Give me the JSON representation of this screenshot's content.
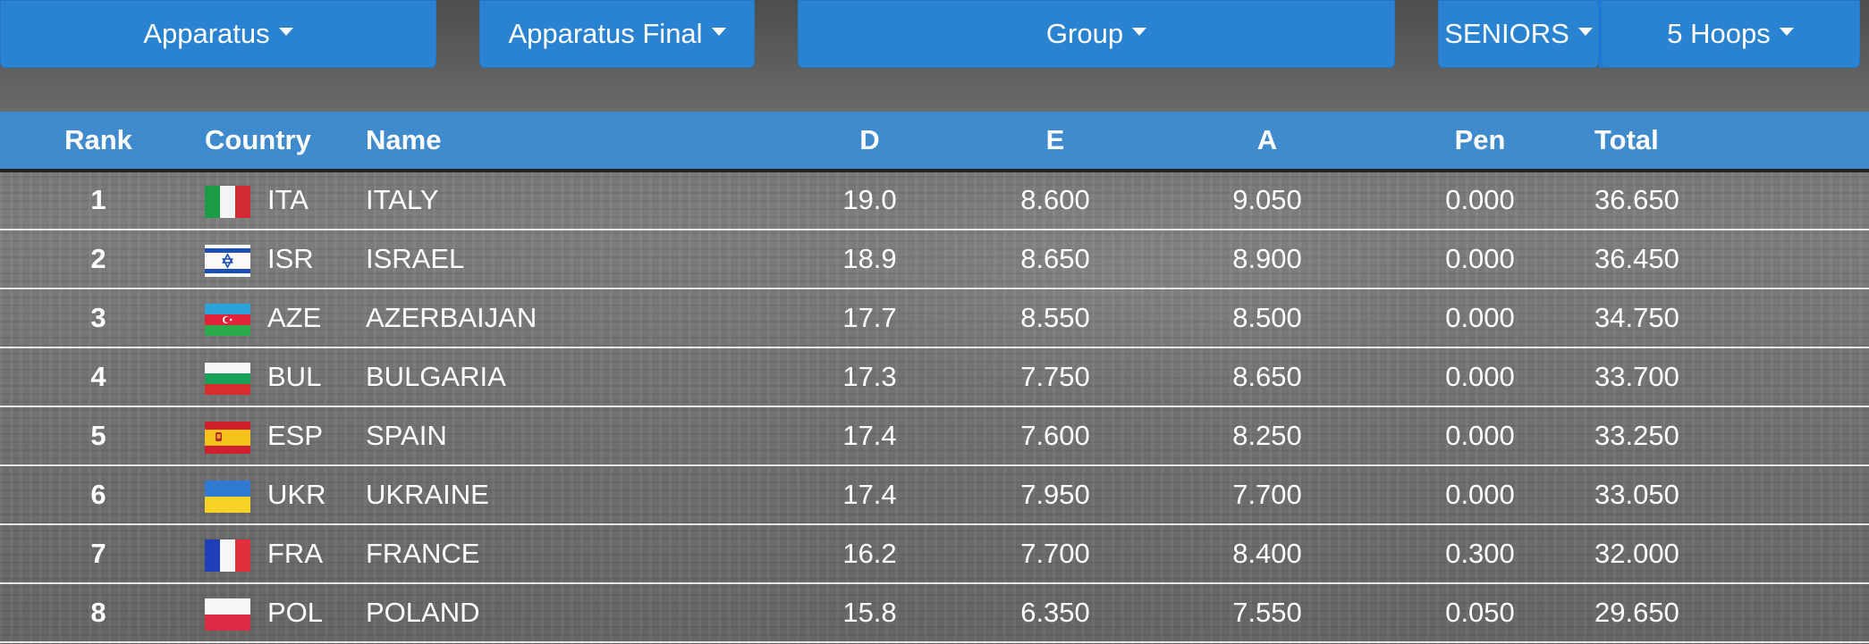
{
  "filters": {
    "apparatus": "Apparatus",
    "final": "Apparatus Final",
    "group": "Group",
    "category": "SENIORS",
    "event": "5 Hoops"
  },
  "table": {
    "headers": {
      "rank": "Rank",
      "country": "Country",
      "name": "Name",
      "d": "D",
      "e": "E",
      "a": "A",
      "pen": "Pen",
      "total": "Total"
    },
    "rows": [
      {
        "rank": "1",
        "code": "ITA",
        "name": "ITALY",
        "d": "19.0",
        "e": "8.600",
        "a": "9.050",
        "pen": "0.000",
        "total": "36.650",
        "flag": "italy-flag-icon"
      },
      {
        "rank": "2",
        "code": "ISR",
        "name": "ISRAEL",
        "d": "18.9",
        "e": "8.650",
        "a": "8.900",
        "pen": "0.000",
        "total": "36.450",
        "flag": "israel-flag-icon"
      },
      {
        "rank": "3",
        "code": "AZE",
        "name": "AZERBAIJAN",
        "d": "17.7",
        "e": "8.550",
        "a": "8.500",
        "pen": "0.000",
        "total": "34.750",
        "flag": "azerbaijan-flag-icon"
      },
      {
        "rank": "4",
        "code": "BUL",
        "name": "BULGARIA",
        "d": "17.3",
        "e": "7.750",
        "a": "8.650",
        "pen": "0.000",
        "total": "33.700",
        "flag": "bulgaria-flag-icon"
      },
      {
        "rank": "5",
        "code": "ESP",
        "name": "SPAIN",
        "d": "17.4",
        "e": "7.600",
        "a": "8.250",
        "pen": "0.000",
        "total": "33.250",
        "flag": "spain-flag-icon"
      },
      {
        "rank": "6",
        "code": "UKR",
        "name": "UKRAINE",
        "d": "17.4",
        "e": "7.950",
        "a": "7.700",
        "pen": "0.000",
        "total": "33.050",
        "flag": "ukraine-flag-icon"
      },
      {
        "rank": "7",
        "code": "FRA",
        "name": "FRANCE",
        "d": "16.2",
        "e": "7.700",
        "a": "8.400",
        "pen": "0.300",
        "total": "32.000",
        "flag": "france-flag-icon"
      },
      {
        "rank": "8",
        "code": "POL",
        "name": "POLAND",
        "d": "15.8",
        "e": "6.350",
        "a": "7.550",
        "pen": "0.050",
        "total": "29.650",
        "flag": "poland-flag-icon"
      }
    ]
  },
  "colors": {
    "accent": "#2a83d1",
    "header": "#3a8cd4"
  }
}
